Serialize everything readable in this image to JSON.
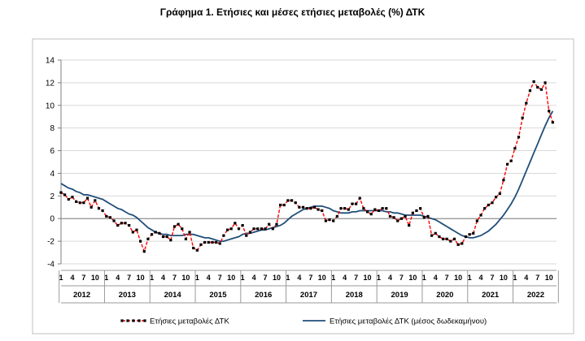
{
  "chart_data": {
    "type": "line",
    "title": "Γράφημα 1. Ετήσιες και μέσες ετήσιες μεταβολές (%) ΔΤΚ",
    "xlabel": "",
    "ylabel": "",
    "ylim": [
      -4,
      14
    ],
    "yticks": [
      -4,
      -2,
      0,
      2,
      4,
      6,
      8,
      10,
      12,
      14
    ],
    "years": [
      "2012",
      "2013",
      "2014",
      "2015",
      "2016",
      "2017",
      "2018",
      "2019",
      "2020",
      "2021",
      "2022"
    ],
    "month_ticks": [
      "1",
      "4",
      "7",
      "10"
    ],
    "grid": "horizontal",
    "legend_position": "bottom",
    "series": [
      {
        "name": "Ετήσιες μεταβολές ΔΤΚ",
        "color": "#ff0000",
        "marker_color": "#000000",
        "style": "dashed-with-markers",
        "values": [
          2.3,
          2.1,
          1.7,
          1.9,
          1.5,
          1.4,
          1.4,
          1.8,
          1.0,
          1.6,
          0.9,
          0.7,
          0.2,
          0.1,
          -0.2,
          -0.6,
          -0.4,
          -0.4,
          -0.6,
          -1.2,
          -1.0,
          -2.0,
          -2.9,
          -1.8,
          -1.4,
          -1.2,
          -1.3,
          -1.6,
          -1.6,
          -1.9,
          -0.7,
          -0.5,
          -0.9,
          -1.8,
          -1.2,
          -2.6,
          -2.8,
          -2.3,
          -2.1,
          -2.1,
          -2.1,
          -2.1,
          -2.2,
          -1.5,
          -1.0,
          -0.9,
          -0.4,
          -0.9,
          -0.6,
          -1.5,
          -1.2,
          -0.9,
          -0.9,
          -0.9,
          -0.9,
          -0.5,
          -0.9,
          -0.5,
          1.2,
          1.2,
          1.6,
          1.6,
          1.4,
          1.0,
          1.0,
          0.9,
          0.9,
          1.0,
          0.8,
          0.7,
          -0.2,
          -0.1,
          -0.2,
          0.2,
          0.9,
          0.9,
          0.8,
          1.3,
          1.3,
          1.8,
          0.9,
          0.6,
          0.4,
          0.8,
          0.7,
          0.9,
          0.9,
          0.2,
          0.1,
          -0.2,
          0.0,
          0.2,
          -0.6,
          0.5,
          0.7,
          0.9,
          0.1,
          0.2,
          -1.5,
          -1.3,
          -1.6,
          -1.8,
          -1.8,
          -2.0,
          -1.8,
          -2.3,
          -2.2,
          -1.6,
          -1.4,
          -1.3,
          -0.2,
          0.3,
          0.9,
          1.2,
          1.4,
          1.9,
          2.2,
          3.4,
          4.8,
          5.1,
          6.2,
          7.2,
          8.9,
          10.2,
          11.3,
          12.1,
          11.6,
          11.4,
          12.0,
          9.5,
          8.5
        ]
      },
      {
        "name": "Ετήσιες μεταβολές ΔΤΚ (μέσος δωδεκαμήνου)",
        "color": "#1f4e79",
        "style": "solid",
        "values": [
          3.1,
          2.9,
          2.7,
          2.6,
          2.4,
          2.3,
          2.1,
          2.1,
          2.0,
          1.9,
          1.8,
          1.7,
          1.5,
          1.3,
          1.1,
          0.9,
          0.8,
          0.6,
          0.4,
          0.3,
          0.1,
          -0.2,
          -0.5,
          -0.8,
          -1.0,
          -1.2,
          -1.3,
          -1.4,
          -1.4,
          -1.5,
          -1.5,
          -1.5,
          -1.5,
          -1.4,
          -1.4,
          -1.4,
          -1.5,
          -1.6,
          -1.7,
          -1.7,
          -1.8,
          -1.9,
          -2.0,
          -2.0,
          -1.9,
          -1.8,
          -1.7,
          -1.6,
          -1.4,
          -1.3,
          -1.3,
          -1.2,
          -1.1,
          -1.0,
          -1.0,
          -0.9,
          -0.8,
          -0.7,
          -0.6,
          -0.4,
          -0.1,
          0.2,
          0.4,
          0.6,
          0.8,
          0.9,
          1.0,
          1.1,
          1.1,
          1.1,
          1.0,
          0.9,
          0.7,
          0.6,
          0.5,
          0.5,
          0.5,
          0.6,
          0.6,
          0.7,
          0.7,
          0.7,
          0.7,
          0.7,
          0.7,
          0.7,
          0.6,
          0.6,
          0.5,
          0.5,
          0.4,
          0.3,
          0.3,
          0.3,
          0.3,
          0.3,
          0.2,
          0.1,
          0.0,
          -0.1,
          -0.3,
          -0.5,
          -0.7,
          -0.9,
          -1.1,
          -1.3,
          -1.5,
          -1.6,
          -1.7,
          -1.7,
          -1.6,
          -1.5,
          -1.3,
          -1.1,
          -0.8,
          -0.5,
          -0.1,
          0.3,
          0.8,
          1.3,
          1.9,
          2.6,
          3.4,
          4.2,
          5.0,
          5.8,
          6.6,
          7.4,
          8.2,
          8.9,
          9.5
        ]
      }
    ]
  }
}
